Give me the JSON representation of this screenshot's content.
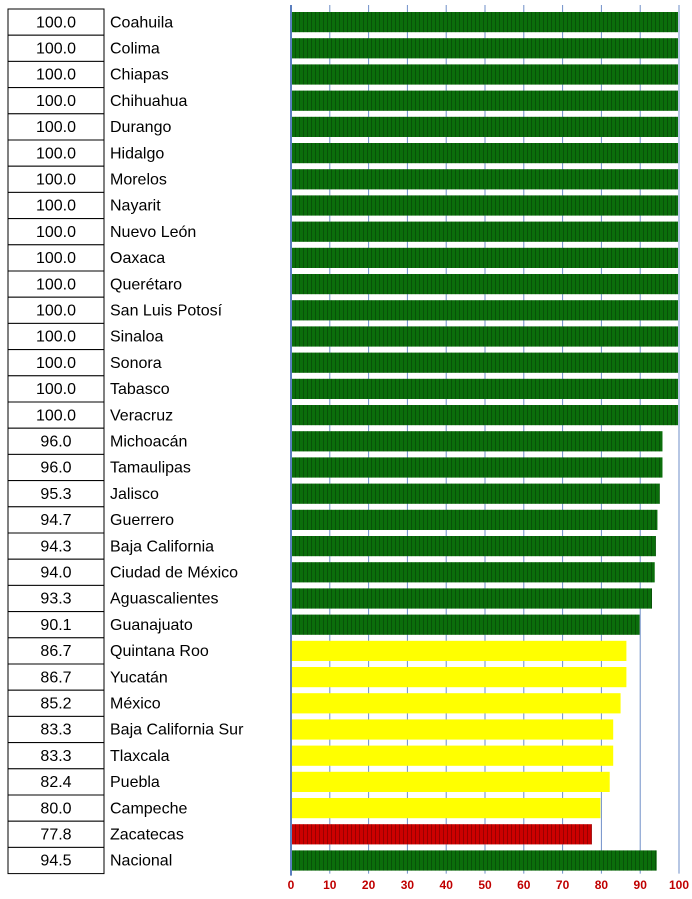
{
  "chart_data": {
    "type": "bar",
    "orientation": "horizontal",
    "categories": [
      "Coahuila",
      "Colima",
      "Chiapas",
      "Chihuahua",
      "Durango",
      "Hidalgo",
      "Morelos",
      "Nayarit",
      "Nuevo León",
      "Oaxaca",
      "Querétaro",
      "San Luis Potosí",
      "Sinaloa",
      "Sonora",
      "Tabasco",
      "Veracruz",
      "Michoacán",
      "Tamaulipas",
      "Jalisco",
      "Guerrero",
      "Baja California",
      "Ciudad de México",
      "Aguascalientes",
      "Guanajuato",
      "Quintana Roo",
      "Yucatán",
      "México",
      "Baja California Sur",
      "Tlaxcala",
      "Puebla",
      "Campeche",
      "Zacatecas",
      "Nacional"
    ],
    "values": [
      100,
      100,
      100,
      100,
      100,
      100,
      100,
      100,
      100,
      100,
      100,
      100,
      100,
      100,
      100,
      100,
      96,
      96,
      95.3,
      94.7,
      94.3,
      94,
      93.3,
      90.1,
      86.7,
      86.7,
      85.2,
      83.3,
      83.3,
      82.4,
      80,
      77.8,
      94.5
    ],
    "value_labels": [
      "100.0",
      "100.0",
      "100.0",
      "100.0",
      "100.0",
      "100.0",
      "100.0",
      "100.0",
      "100.0",
      "100.0",
      "100.0",
      "100.0",
      "100.0",
      "100.0",
      "100.0",
      "100.0",
      "96.0",
      "96.0",
      "95.3",
      "94.7",
      "94.3",
      "94.0",
      "93.3",
      "90.1",
      "86.7",
      "86.7",
      "85.2",
      "83.3",
      "83.3",
      "82.4",
      "80.0",
      "77.8",
      "94.5"
    ],
    "colors": [
      "#0b6e0b",
      "#0b6e0b",
      "#0b6e0b",
      "#0b6e0b",
      "#0b6e0b",
      "#0b6e0b",
      "#0b6e0b",
      "#0b6e0b",
      "#0b6e0b",
      "#0b6e0b",
      "#0b6e0b",
      "#0b6e0b",
      "#0b6e0b",
      "#0b6e0b",
      "#0b6e0b",
      "#0b6e0b",
      "#0b6e0b",
      "#0b6e0b",
      "#0b6e0b",
      "#0b6e0b",
      "#0b6e0b",
      "#0b6e0b",
      "#0b6e0b",
      "#0b6e0b",
      "#ffff00",
      "#ffff00",
      "#ffff00",
      "#ffff00",
      "#ffff00",
      "#ffff00",
      "#ffff00",
      "#cc0000",
      "#0b6e0b"
    ],
    "xlim": [
      0,
      100
    ],
    "xticks": [
      0,
      10,
      20,
      30,
      40,
      50,
      60,
      70,
      80,
      90,
      100
    ],
    "grid": true
  }
}
